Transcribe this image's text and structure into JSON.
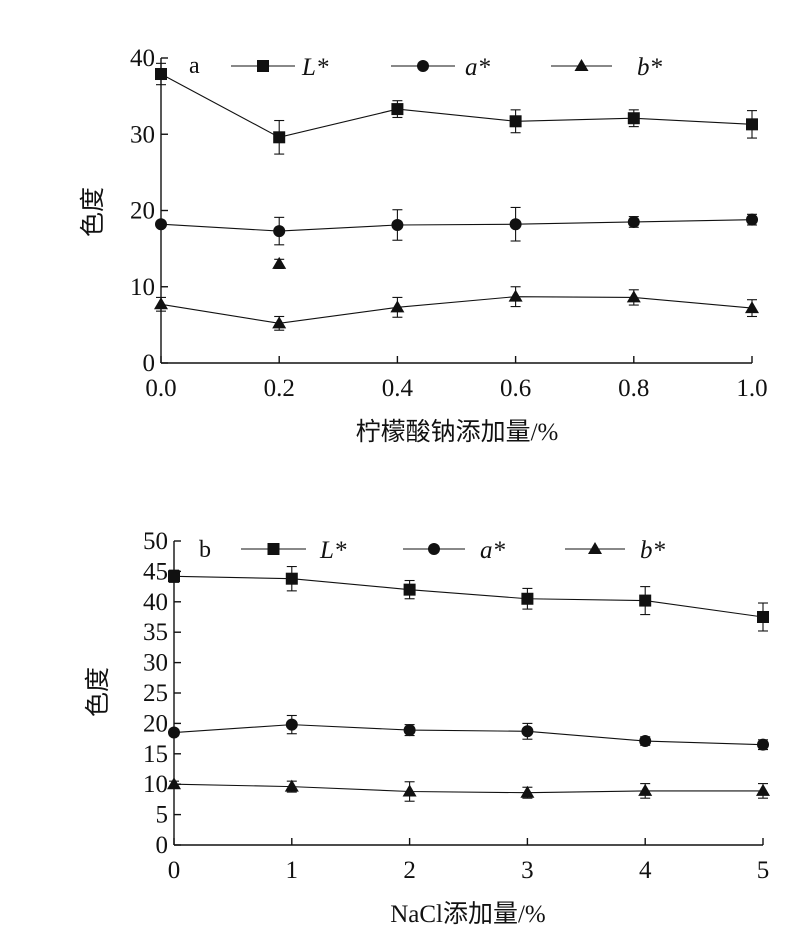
{
  "chart_data": [
    {
      "type": "line",
      "panel_label": "a",
      "xlabel": "柠檬酸钠添加量/%",
      "ylabel": "色度",
      "xlim": [
        0,
        1.0
      ],
      "ylim": [
        0,
        40
      ],
      "x_ticks": [
        "0.0",
        "0.2",
        "0.4",
        "0.6",
        "0.8",
        "1.0"
      ],
      "y_ticks": [
        "0",
        "10",
        "20",
        "30",
        "40"
      ],
      "x": [
        0.0,
        0.2,
        0.4,
        0.6,
        0.8,
        1.0
      ],
      "legend_position": "top",
      "series": [
        {
          "name": "L*",
          "marker": "square",
          "values": [
            37.9,
            29.6,
            33.3,
            31.7,
            32.1,
            31.3
          ],
          "errors": [
            1.4,
            2.2,
            1.1,
            1.5,
            1.1,
            1.8
          ]
        },
        {
          "name": "a*",
          "marker": "circle",
          "values": [
            18.2,
            17.3,
            18.1,
            18.2,
            18.5,
            18.8
          ],
          "errors": [
            0.3,
            1.8,
            2.0,
            2.2,
            0.7,
            0.7
          ]
        },
        {
          "name": "b*",
          "marker": "triangle",
          "values": [
            7.7,
            5.2,
            7.3,
            8.7,
            8.6,
            7.2
          ],
          "errors": [
            0.9,
            0.9,
            1.3,
            1.3,
            1.0,
            1.1
          ]
        }
      ],
      "annotations": [
        {
          "marker": "triangle",
          "x": 0.2,
          "y": 13.0,
          "error": 0.6
        }
      ]
    },
    {
      "type": "line",
      "panel_label": "b",
      "xlabel": "NaCl添加量/%",
      "ylabel": "色度",
      "xlim": [
        0,
        5
      ],
      "ylim": [
        0,
        50
      ],
      "x_ticks": [
        "0",
        "1",
        "2",
        "3",
        "4",
        "5"
      ],
      "y_ticks": [
        "0",
        "5",
        "10",
        "15",
        "20",
        "25",
        "30",
        "35",
        "40",
        "45",
        "50"
      ],
      "x": [
        0,
        1,
        2,
        3,
        4,
        5
      ],
      "legend_position": "top",
      "series": [
        {
          "name": "L*",
          "marker": "square",
          "values": [
            44.2,
            43.8,
            42.0,
            40.5,
            40.2,
            37.5
          ],
          "errors": [
            1.0,
            2.0,
            1.5,
            1.7,
            2.3,
            2.3
          ]
        },
        {
          "name": "a*",
          "marker": "circle",
          "values": [
            18.5,
            19.8,
            18.9,
            18.7,
            17.1,
            16.5
          ],
          "errors": [
            0.5,
            1.5,
            0.9,
            1.3,
            0.7,
            0.8
          ]
        },
        {
          "name": "b*",
          "marker": "triangle",
          "values": [
            10.0,
            9.6,
            8.8,
            8.6,
            8.9,
            8.9
          ],
          "errors": [
            0.5,
            0.9,
            1.6,
            0.9,
            1.2,
            1.2
          ]
        }
      ]
    }
  ]
}
